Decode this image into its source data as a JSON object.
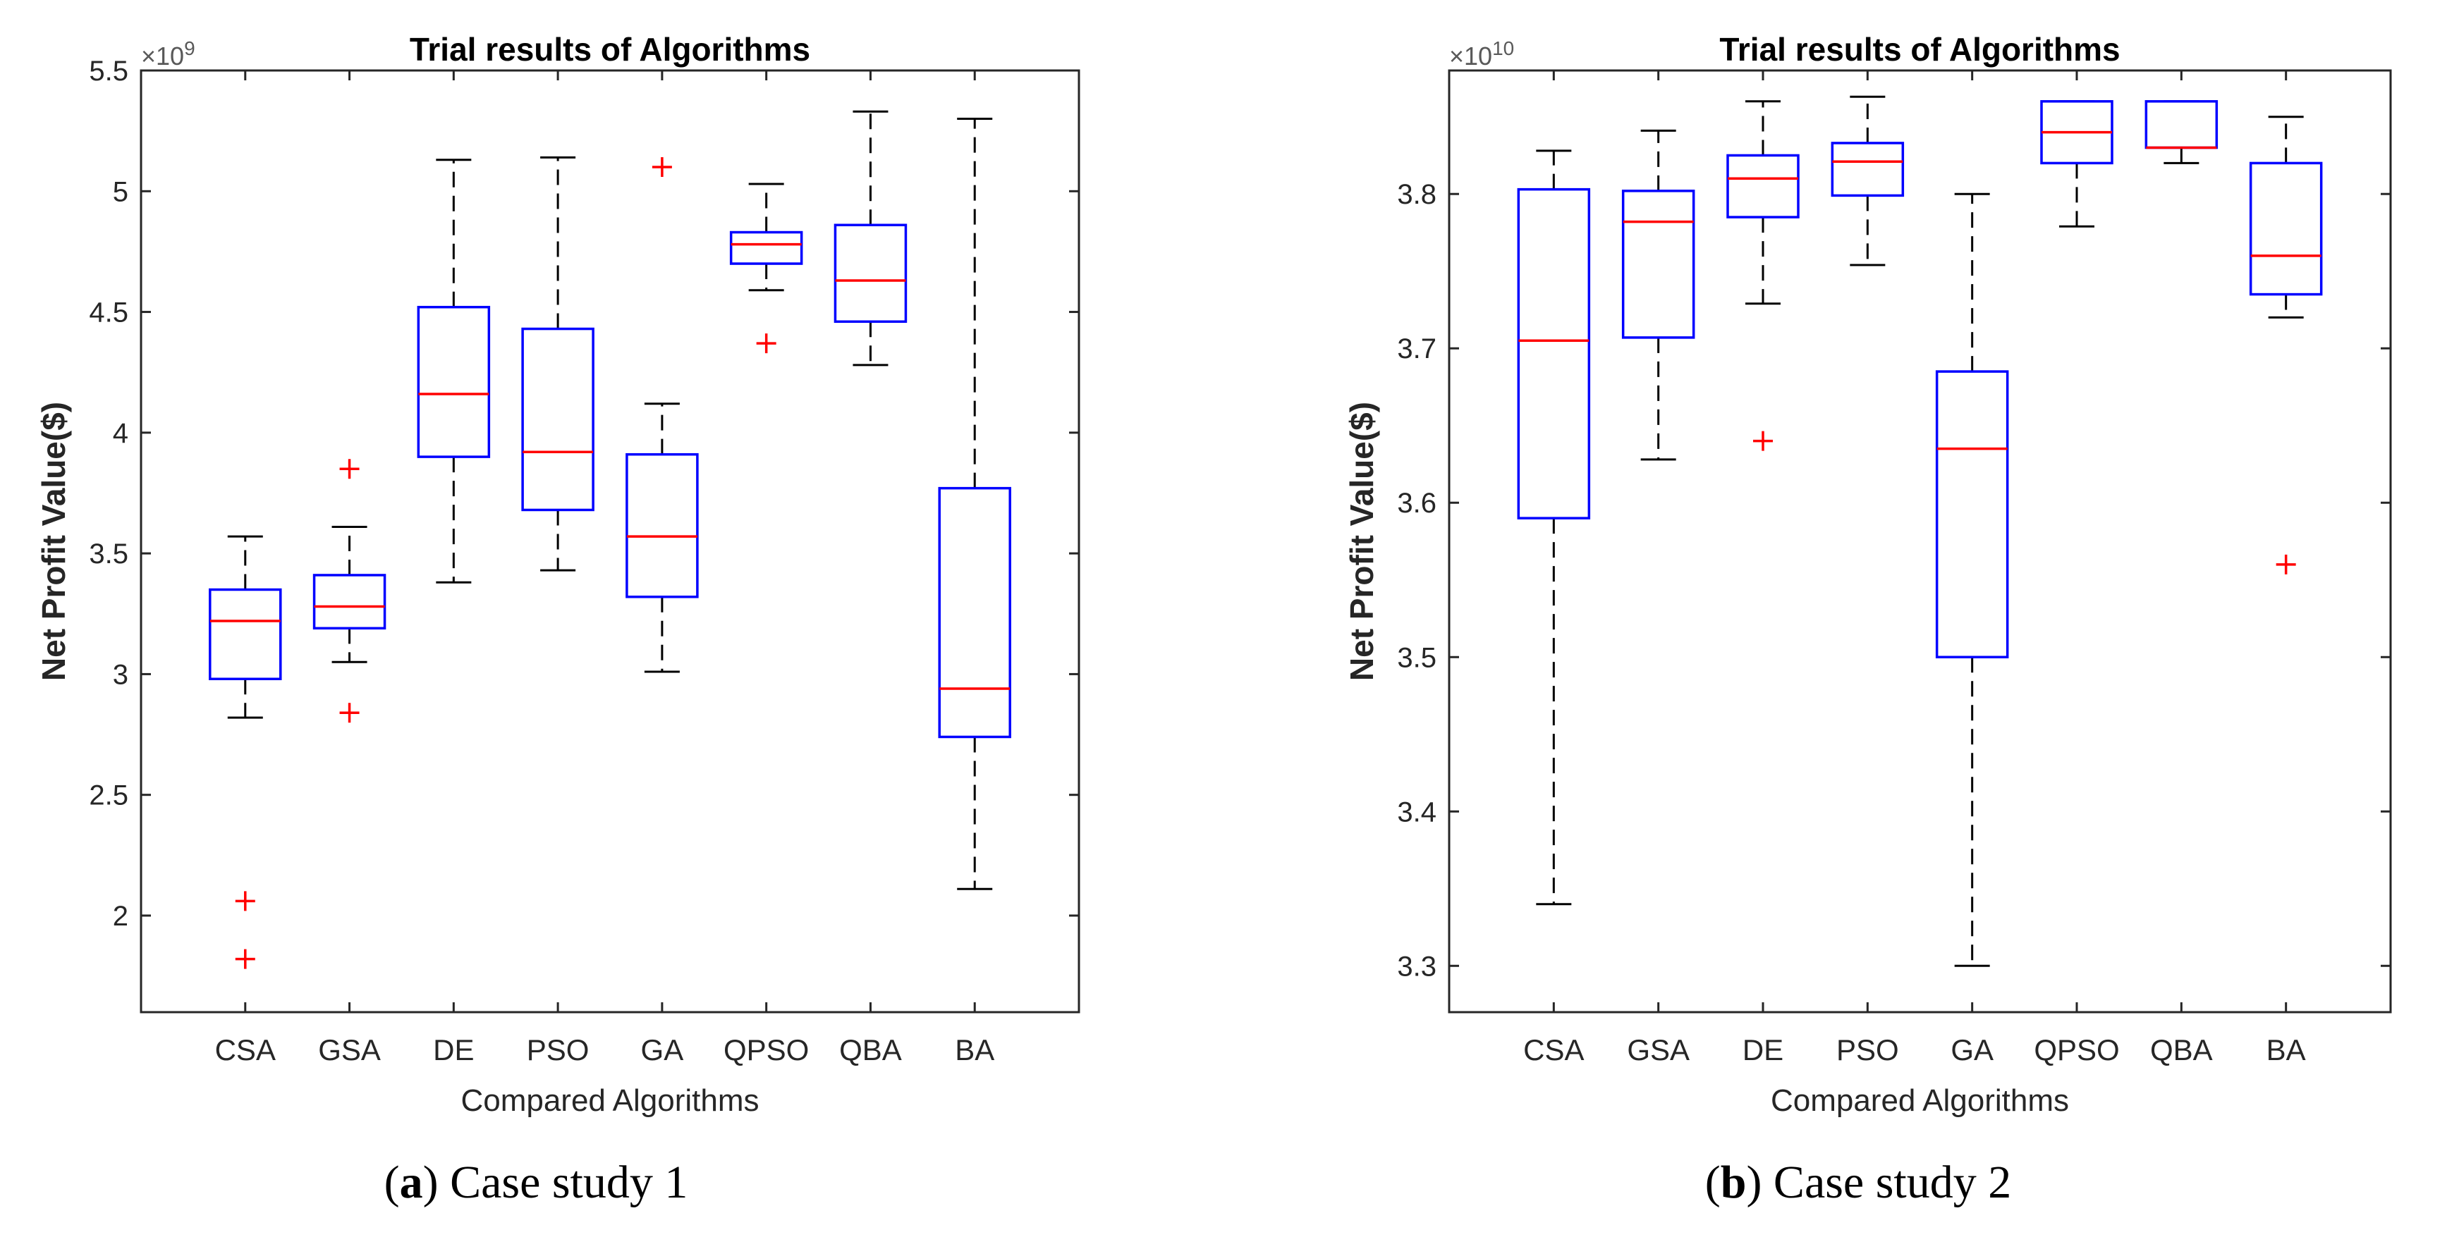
{
  "chart_data": [
    {
      "type": "box",
      "panel": "a",
      "title": "Trial results of Algorithms",
      "xlabel": "Compared Algorithms",
      "ylabel": "Net Profit Value($)",
      "exponent_label": "×10",
      "exponent_power": "9",
      "ylim": [
        1.6,
        5.5
      ],
      "yticks": [
        2,
        2.5,
        3,
        3.5,
        4,
        4.5,
        5,
        5.5
      ],
      "ytick_labels": [
        "2",
        "2.5",
        "3",
        "3.5",
        "4",
        "4.5",
        "5",
        "5.5"
      ],
      "categories": [
        "CSA",
        "GSA",
        "DE",
        "PSO",
        "GA",
        "QPSO",
        "QBA",
        "BA"
      ],
      "boxes": [
        {
          "name": "CSA",
          "whisker_low": 2.82,
          "q1": 2.98,
          "median": 3.22,
          "q3": 3.35,
          "whisker_high": 3.57,
          "outliers": [
            2.06,
            1.82
          ]
        },
        {
          "name": "GSA",
          "whisker_low": 3.05,
          "q1": 3.19,
          "median": 3.28,
          "q3": 3.41,
          "whisker_high": 3.61,
          "outliers": [
            3.85,
            2.84
          ]
        },
        {
          "name": "DE",
          "whisker_low": 3.38,
          "q1": 3.9,
          "median": 4.16,
          "q3": 4.52,
          "whisker_high": 5.13,
          "outliers": []
        },
        {
          "name": "PSO",
          "whisker_low": 3.43,
          "q1": 3.68,
          "median": 3.92,
          "q3": 4.43,
          "whisker_high": 5.14,
          "outliers": []
        },
        {
          "name": "GA",
          "whisker_low": 3.01,
          "q1": 3.32,
          "median": 3.57,
          "q3": 3.91,
          "whisker_high": 4.12,
          "outliers": [
            5.1
          ]
        },
        {
          "name": "QPSO",
          "whisker_low": 4.59,
          "q1": 4.7,
          "median": 4.78,
          "q3": 4.83,
          "whisker_high": 5.03,
          "outliers": [
            4.37
          ]
        },
        {
          "name": "QBA",
          "whisker_low": 4.28,
          "q1": 4.46,
          "median": 4.63,
          "q3": 4.86,
          "whisker_high": 5.33,
          "outliers": []
        },
        {
          "name": "BA",
          "whisker_low": 2.11,
          "q1": 2.74,
          "median": 2.94,
          "q3": 3.77,
          "whisker_high": 5.3,
          "outliers": []
        }
      ],
      "caption_letter": "a",
      "caption_text": "Case study 1"
    },
    {
      "type": "box",
      "panel": "b",
      "title": "Trial results of Algorithms",
      "xlabel": "Compared Algorithms",
      "ylabel": "Net Profit Value($)",
      "exponent_label": "×10",
      "exponent_power": "10",
      "ylim": [
        3.27,
        3.88
      ],
      "yticks": [
        3.3,
        3.4,
        3.5,
        3.6,
        3.7,
        3.8
      ],
      "ytick_labels": [
        "3.3",
        "3.4",
        "3.5",
        "3.6",
        "3.7",
        "3.8"
      ],
      "categories": [
        "CSA",
        "GSA",
        "DE",
        "PSO",
        "GA",
        "QPSO",
        "QBA",
        "BA"
      ],
      "boxes": [
        {
          "name": "CSA",
          "whisker_low": 3.34,
          "q1": 3.59,
          "median": 3.705,
          "q3": 3.803,
          "whisker_high": 3.828,
          "outliers": []
        },
        {
          "name": "GSA",
          "whisker_low": 3.628,
          "q1": 3.707,
          "median": 3.782,
          "q3": 3.802,
          "whisker_high": 3.841,
          "outliers": []
        },
        {
          "name": "DE",
          "whisker_low": 3.729,
          "q1": 3.785,
          "median": 3.81,
          "q3": 3.825,
          "whisker_high": 3.86,
          "outliers": [
            3.64
          ]
        },
        {
          "name": "PSO",
          "whisker_low": 3.754,
          "q1": 3.799,
          "median": 3.821,
          "q3": 3.833,
          "whisker_high": 3.863,
          "outliers": []
        },
        {
          "name": "GA",
          "whisker_low": 3.3,
          "q1": 3.5,
          "median": 3.635,
          "q3": 3.685,
          "whisker_high": 3.8,
          "outliers": []
        },
        {
          "name": "QPSO",
          "whisker_low": 3.779,
          "q1": 3.82,
          "median": 3.84,
          "q3": 3.86,
          "whisker_high": 3.86,
          "outliers": []
        },
        {
          "name": "QBA",
          "whisker_low": 3.82,
          "q1": 3.83,
          "median": 3.83,
          "q3": 3.86,
          "whisker_high": 3.86,
          "outliers": []
        },
        {
          "name": "BA",
          "whisker_low": 3.72,
          "q1": 3.735,
          "median": 3.76,
          "q3": 3.82,
          "whisker_high": 3.85,
          "outliers": [
            3.56
          ]
        }
      ],
      "caption_letter": "b",
      "caption_text": "Case study 2"
    }
  ]
}
